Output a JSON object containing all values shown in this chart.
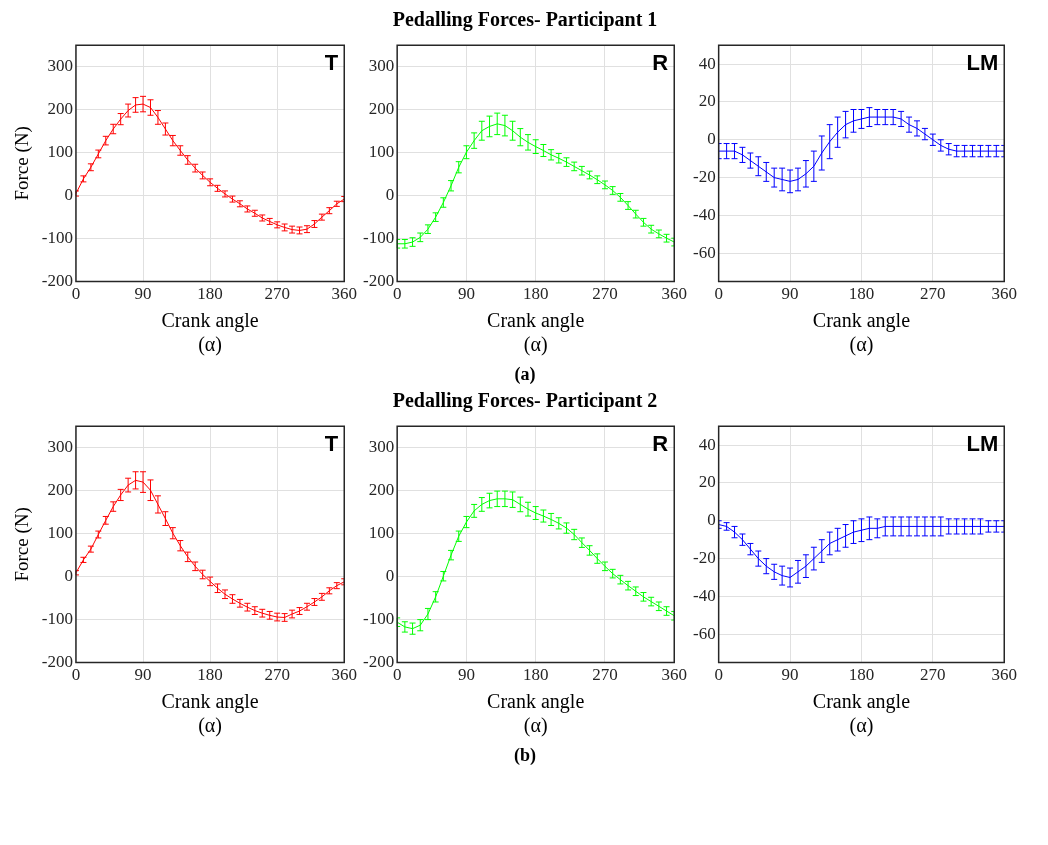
{
  "chart_data": [
    {
      "type": "line",
      "xlabel": "Crank angle\n(α)",
      "ylabel": "Force (N)",
      "annotations": [
        "T"
      ],
      "color": "#ff0000",
      "grid": true,
      "xlim": [
        0,
        360
      ],
      "xticks": [
        0,
        90,
        180,
        270,
        360
      ],
      "ylim": [
        -200,
        350
      ],
      "yticks": [
        -200,
        -100,
        0,
        100,
        200,
        300
      ],
      "x": [
        0,
        10,
        20,
        30,
        40,
        50,
        60,
        70,
        80,
        90,
        100,
        110,
        120,
        130,
        140,
        150,
        160,
        170,
        180,
        190,
        200,
        210,
        220,
        230,
        240,
        250,
        260,
        270,
        280,
        290,
        300,
        310,
        320,
        330,
        340,
        350,
        360
      ],
      "values": [
        5,
        39,
        66,
        97,
        128,
        155,
        178,
        198,
        211,
        213,
        205,
        182,
        155,
        128,
        105,
        83,
        64,
        47,
        31,
        17,
        4,
        -8,
        -19,
        -31,
        -41,
        -52,
        -60,
        -68,
        -74,
        -79,
        -81,
        -78,
        -66,
        -50,
        -35,
        -19,
        -8
      ],
      "errors": [
        6,
        7,
        8,
        9,
        10,
        11,
        13,
        15,
        17,
        18,
        18,
        16,
        14,
        12,
        11,
        10,
        9,
        8,
        8,
        7,
        7,
        7,
        7,
        7,
        7,
        7,
        7,
        7,
        8,
        8,
        8,
        8,
        8,
        7,
        7,
        6,
        6
      ]
    },
    {
      "type": "line",
      "title": "Pedalling Forces- Participant 1",
      "xlabel": "Crank angle\n(α)",
      "annotations": [
        "R",
        "(a)"
      ],
      "color": "#00ff00",
      "grid": true,
      "xlim": [
        0,
        360
      ],
      "xticks": [
        0,
        90,
        180,
        270,
        360
      ],
      "ylim": [
        -200,
        350
      ],
      "yticks": [
        -200,
        -100,
        0,
        100,
        200,
        300
      ],
      "x": [
        0,
        10,
        20,
        30,
        40,
        50,
        60,
        70,
        80,
        90,
        100,
        110,
        120,
        130,
        140,
        150,
        160,
        170,
        180,
        190,
        200,
        210,
        220,
        230,
        240,
        250,
        260,
        270,
        280,
        290,
        300,
        310,
        320,
        330,
        340,
        350,
        360
      ],
      "values": [
        -112,
        -112,
        -108,
        -97,
        -78,
        -50,
        -16,
        23,
        66,
        101,
        128,
        151,
        161,
        167,
        163,
        151,
        136,
        124,
        114,
        105,
        95,
        87,
        78,
        68,
        58,
        48,
        37,
        25,
        12,
        -4,
        -23,
        -43,
        -62,
        -78,
        -89,
        -99,
        -108
      ],
      "errors": [
        10,
        10,
        10,
        10,
        10,
        10,
        11,
        12,
        13,
        15,
        18,
        22,
        24,
        25,
        24,
        22,
        20,
        18,
        16,
        14,
        12,
        11,
        10,
        10,
        10,
        9,
        9,
        9,
        9,
        9,
        9,
        9,
        9,
        9,
        9,
        9,
        9
      ]
    },
    {
      "type": "line",
      "xlabel": "Crank angle\n(α)",
      "annotations": [
        "LM"
      ],
      "color": "#0000ff",
      "grid": true,
      "xlim": [
        0,
        360
      ],
      "xticks": [
        0,
        90,
        180,
        270,
        360
      ],
      "ylim": [
        -75,
        50
      ],
      "yticks": [
        -60,
        -40,
        -20,
        0,
        20,
        40
      ],
      "x": [
        0,
        10,
        20,
        30,
        40,
        50,
        60,
        70,
        80,
        90,
        100,
        110,
        120,
        130,
        140,
        150,
        160,
        170,
        180,
        190,
        200,
        210,
        220,
        230,
        240,
        250,
        260,
        270,
        280,
        290,
        300,
        310,
        320,
        330,
        340,
        350,
        360
      ],
      "values": [
        -6,
        -6,
        -6,
        -8,
        -11,
        -14,
        -17,
        -20,
        -21,
        -22,
        -21,
        -18,
        -14,
        -7,
        -1,
        4,
        8,
        10,
        11,
        12,
        12,
        12,
        12,
        11,
        8,
        6,
        3,
        0,
        -3,
        -5,
        -6,
        -6,
        -6,
        -6,
        -6,
        -6,
        -6
      ],
      "errors": [
        4,
        4,
        4,
        4,
        4,
        5,
        5,
        5,
        6,
        6,
        6,
        7,
        8,
        9,
        9,
        8,
        7,
        6,
        5,
        5,
        4,
        4,
        4,
        4,
        4,
        4,
        3,
        3,
        3,
        3,
        3,
        3,
        3,
        3,
        3,
        3,
        3
      ]
    },
    {
      "type": "line",
      "xlabel": "Crank angle\n(α)",
      "ylabel": "Force (N)",
      "annotations": [
        "T"
      ],
      "color": "#ff0000",
      "grid": true,
      "xlim": [
        0,
        360
      ],
      "xticks": [
        0,
        90,
        180,
        270,
        360
      ],
      "ylim": [
        -200,
        350
      ],
      "yticks": [
        -200,
        -100,
        0,
        100,
        200,
        300
      ],
      "x": [
        0,
        10,
        20,
        30,
        40,
        50,
        60,
        70,
        80,
        90,
        100,
        110,
        120,
        130,
        140,
        150,
        160,
        170,
        180,
        190,
        200,
        210,
        220,
        230,
        240,
        250,
        260,
        270,
        280,
        290,
        300,
        310,
        320,
        330,
        340,
        350,
        360
      ],
      "values": [
        9,
        39,
        64,
        98,
        131,
        163,
        190,
        213,
        224,
        220,
        201,
        168,
        135,
        101,
        72,
        46,
        24,
        5,
        -11,
        -27,
        -41,
        -52,
        -62,
        -71,
        -79,
        -85,
        -90,
        -94,
        -95,
        -87,
        -80,
        -70,
        -59,
        -47,
        -33,
        -21,
        -12
      ],
      "errors": [
        5,
        6,
        7,
        8,
        9,
        11,
        13,
        16,
        20,
        24,
        24,
        20,
        16,
        13,
        12,
        11,
        10,
        10,
        10,
        10,
        10,
        10,
        9,
        9,
        9,
        9,
        9,
        9,
        9,
        9,
        8,
        8,
        8,
        8,
        7,
        7,
        7
      ]
    },
    {
      "type": "line",
      "title": "Pedalling Forces- Participant 2",
      "xlabel": "Crank angle\n(α)",
      "annotations": [
        "R",
        "(b)"
      ],
      "color": "#00ff00",
      "grid": true,
      "xlim": [
        0,
        360
      ],
      "xticks": [
        0,
        90,
        180,
        270,
        360
      ],
      "ylim": [
        -200,
        350
      ],
      "yticks": [
        -200,
        -100,
        0,
        100,
        200,
        300
      ],
      "x": [
        0,
        10,
        20,
        30,
        40,
        50,
        60,
        70,
        80,
        90,
        100,
        110,
        120,
        130,
        140,
        150,
        160,
        170,
        180,
        190,
        200,
        210,
        220,
        230,
        240,
        250,
        260,
        270,
        280,
        290,
        300,
        310,
        320,
        330,
        340,
        350,
        360
      ],
      "values": [
        -106,
        -117,
        -121,
        -113,
        -87,
        -47,
        1,
        50,
        94,
        127,
        153,
        168,
        177,
        181,
        181,
        179,
        168,
        157,
        148,
        141,
        133,
        124,
        113,
        98,
        79,
        61,
        42,
        24,
        7,
        -7,
        -21,
        -34,
        -47,
        -58,
        -69,
        -80,
        -91
      ],
      "errors": [
        10,
        12,
        13,
        13,
        13,
        12,
        11,
        11,
        12,
        13,
        15,
        16,
        17,
        18,
        18,
        18,
        17,
        16,
        15,
        14,
        14,
        13,
        12,
        12,
        11,
        11,
        11,
        10,
        10,
        10,
        10,
        10,
        10,
        10,
        10,
        10,
        10
      ]
    },
    {
      "type": "line",
      "xlabel": "Crank angle\n(α)",
      "annotations": [
        "LM"
      ],
      "color": "#0000ff",
      "grid": true,
      "xlim": [
        0,
        360
      ],
      "xticks": [
        0,
        90,
        180,
        270,
        360
      ],
      "ylim": [
        -75,
        50
      ],
      "yticks": [
        -60,
        -40,
        -20,
        0,
        20,
        40
      ],
      "x": [
        0,
        10,
        20,
        30,
        40,
        50,
        60,
        70,
        80,
        90,
        100,
        110,
        120,
        130,
        140,
        150,
        160,
        170,
        180,
        190,
        200,
        210,
        220,
        230,
        240,
        250,
        260,
        270,
        280,
        290,
        300,
        310,
        320,
        330,
        340,
        350,
        360
      ],
      "values": [
        -2,
        -3,
        -6,
        -10,
        -15,
        -20,
        -24,
        -27,
        -29,
        -30,
        -27,
        -24,
        -20,
        -16,
        -12,
        -10,
        -8,
        -6,
        -5,
        -4,
        -4,
        -3,
        -3,
        -3,
        -3,
        -3,
        -3,
        -3,
        -3,
        -3,
        -3,
        -3,
        -3,
        -3,
        -3,
        -3,
        -3
      ],
      "errors": [
        2,
        2,
        3,
        3,
        3,
        4,
        4,
        4,
        5,
        5,
        6,
        6,
        6,
        6,
        6,
        6,
        6,
        6,
        6,
        6,
        5,
        5,
        5,
        5,
        5,
        5,
        5,
        5,
        5,
        4,
        4,
        4,
        4,
        4,
        3,
        3,
        3
      ]
    }
  ]
}
